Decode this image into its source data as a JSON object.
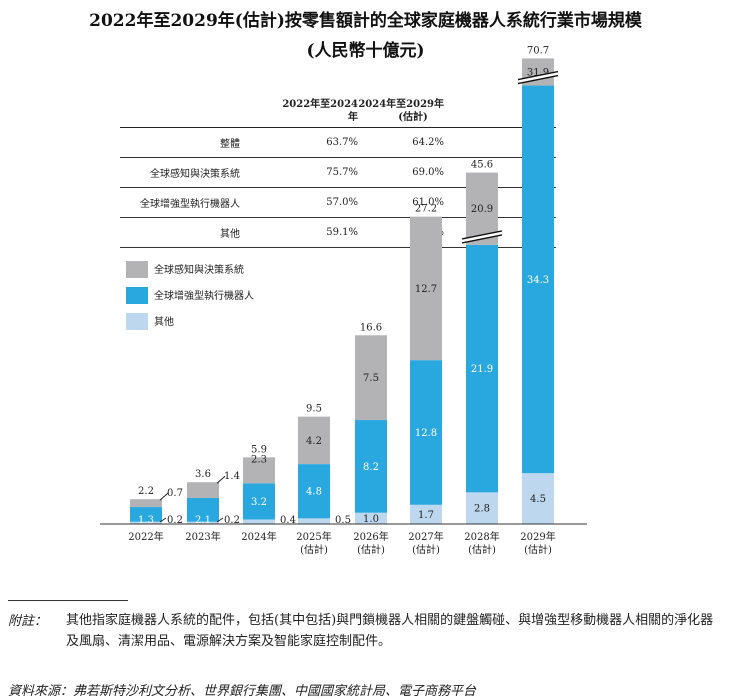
{
  "title_line1": "2022年至2029年(估計)按零售額計的全球家庭機器人系統行業市場規模",
  "title_line2": "(人民幣十億元)",
  "cagr_table": {
    "header_col1_line1": "2022年至2024年",
    "header_col2_line1": "2024年至2029年",
    "header_col2_line2": "(估計)",
    "rows": [
      {
        "label": "整體",
        "v1": "63.7%",
        "v2": "64.2%"
      },
      {
        "label": "全球感知與決策系統",
        "v1": "75.7%",
        "v2": "69.0%"
      },
      {
        "label": "全球增強型執行機器人",
        "v1": "57.0%",
        "v2": "61.0%"
      },
      {
        "label": "其他",
        "v1": "59.1%",
        "v2": "59.3%"
      }
    ]
  },
  "chart_data": {
    "type": "bar",
    "stacked": true,
    "categories": [
      "2022年",
      "2023年",
      "2024年",
      "2025年",
      "2026年",
      "2027年",
      "2028年",
      "2029年"
    ],
    "category_sublabels": [
      "",
      "",
      "",
      "(估計)",
      "(估計)",
      "(估計)",
      "(估計)",
      "(估計)"
    ],
    "series": [
      {
        "name": "其他",
        "values": [
          0.2,
          0.2,
          0.4,
          0.5,
          1.0,
          1.7,
          2.8,
          4.5
        ],
        "color": "#bdd7ee"
      },
      {
        "name": "全球增強型執行機器人",
        "values": [
          1.3,
          2.1,
          3.2,
          4.8,
          8.2,
          12.8,
          21.9,
          34.3
        ],
        "color": "#29a8e0"
      },
      {
        "name": "全球感知與決策系統",
        "values": [
          0.7,
          1.4,
          2.3,
          4.2,
          7.5,
          12.7,
          20.9,
          31.9
        ],
        "color": "#b3b3b6"
      }
    ],
    "totals": [
      2.2,
      3.6,
      5.9,
      9.5,
      16.6,
      27.2,
      45.6,
      70.7
    ],
    "legend": [
      "全球感知與決策系統",
      "全球增強型執行機器人",
      "其他"
    ],
    "legend_position": "top-left",
    "axis_break_on_bars": [
      "2028年",
      "2029年"
    ],
    "grid": false
  },
  "footnote": {
    "label": "附註：",
    "text": "其他指家庭機器人系統的配件，包括(其中包括)與門鎖機器人相關的鍵盤觸碰、與增強型移動機器人相關的淨化器及風扇、清潔用品、電源解決方案及智能家庭控制配件。"
  },
  "source": "資料來源：弗若斯特沙利文分析、世界銀行集團、中國國家統計局、電子商務平台"
}
